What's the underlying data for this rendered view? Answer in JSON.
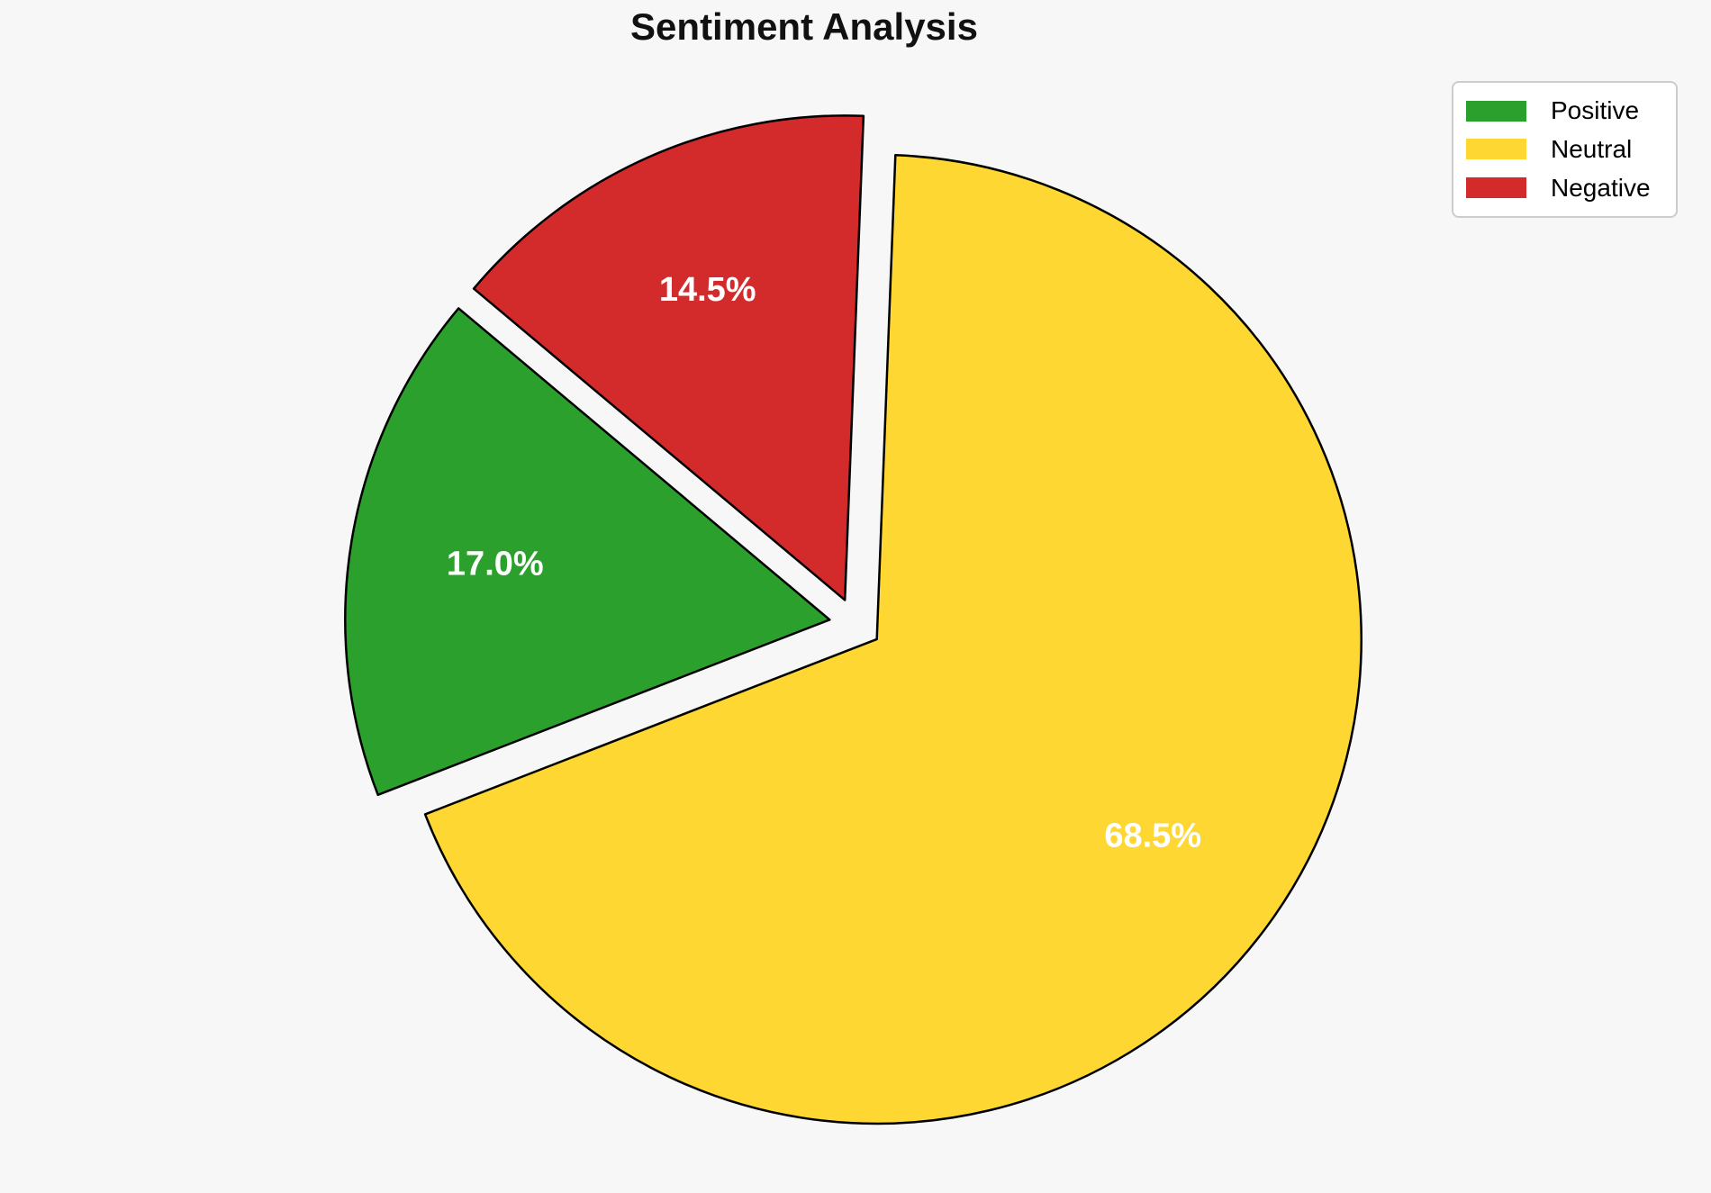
{
  "chart_data": {
    "type": "pie",
    "title": "Sentiment Analysis",
    "categories": [
      "Positive",
      "Neutral",
      "Negative"
    ],
    "values": [
      17.0,
      68.5,
      14.5
    ],
    "pct_labels": [
      "17.0%",
      "68.5%",
      "14.5%"
    ],
    "colors": [
      "#2ca02c",
      "#ffd733",
      "#d32b2b"
    ],
    "edge_color": "#000000",
    "pct_label_color": "#ffffff",
    "background": "#f7f7f7",
    "startangle": 140,
    "direction": "counterclockwise",
    "explode": [
      0.054,
      0.054,
      0.054
    ],
    "pctdistance": 0.7,
    "legend": {
      "position": "upper right",
      "entries": [
        "Positive",
        "Neutral",
        "Negative"
      ]
    }
  }
}
